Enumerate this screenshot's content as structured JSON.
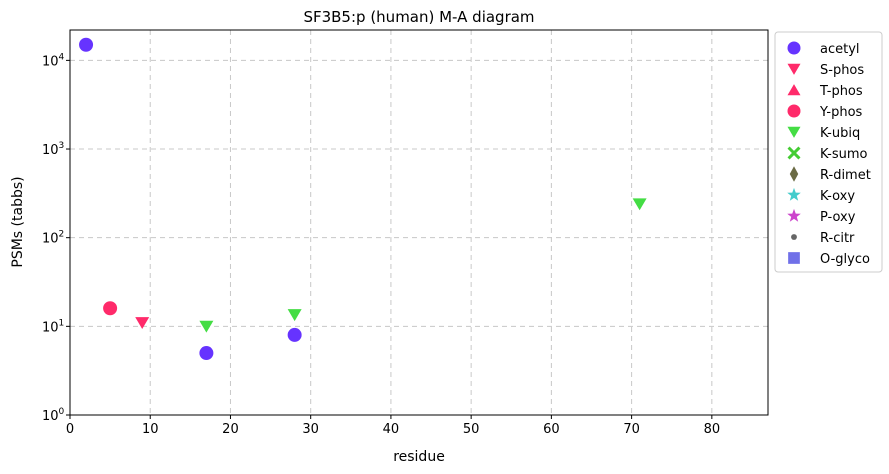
{
  "chart_data": {
    "type": "scatter",
    "title": "SF3B5:p (human) M-A diagram",
    "xlabel": "residue",
    "ylabel": "PSMs (tabbs)",
    "xlim": [
      0,
      87
    ],
    "ylim": [
      1,
      22000
    ],
    "yscale": "log",
    "grid": true,
    "legend_position": "outside-right",
    "x_ticks": [
      0,
      10,
      20,
      30,
      40,
      50,
      60,
      70,
      80
    ],
    "y_ticks": [
      {
        "value": 1,
        "base": "10",
        "exp": "0"
      },
      {
        "value": 10,
        "base": "10",
        "exp": "1"
      },
      {
        "value": 100,
        "base": "10",
        "exp": "2"
      },
      {
        "value": 1000,
        "base": "10",
        "exp": "3"
      },
      {
        "value": 10000,
        "base": "10",
        "exp": "4"
      }
    ],
    "series": [
      {
        "name": "acetyl",
        "marker": "circle",
        "color": "#6633ff",
        "points": [
          {
            "x": 2,
            "y": 15000
          },
          {
            "x": 17,
            "y": 5
          },
          {
            "x": 28,
            "y": 8
          }
        ]
      },
      {
        "name": "S-phos",
        "marker": "triangle-down",
        "color": "#ff2a6a",
        "points": [
          {
            "x": 9,
            "y": 11
          }
        ]
      },
      {
        "name": "T-phos",
        "marker": "triangle-up",
        "color": "#ff2a6a",
        "points": []
      },
      {
        "name": "Y-phos",
        "marker": "circle",
        "color": "#ff2a6a",
        "points": [
          {
            "x": 5,
            "y": 16
          }
        ]
      },
      {
        "name": "K-ubiq",
        "marker": "triangle-down",
        "color": "#44dd44",
        "points": [
          {
            "x": 17,
            "y": 10
          },
          {
            "x": 28,
            "y": 13.5
          },
          {
            "x": 71,
            "y": 240
          }
        ]
      },
      {
        "name": "K-sumo",
        "marker": "x",
        "color": "#44cc33",
        "points": []
      },
      {
        "name": "R-dimet",
        "marker": "diamond",
        "color": "#6b6b45",
        "points": []
      },
      {
        "name": "K-oxy",
        "marker": "star",
        "color": "#44cccc",
        "points": []
      },
      {
        "name": "P-oxy",
        "marker": "star",
        "color": "#cc44cc",
        "points": []
      },
      {
        "name": "R-citr",
        "marker": "small-circle",
        "color": "#666666",
        "points": []
      },
      {
        "name": "O-glyco",
        "marker": "square",
        "color": "#7070e8",
        "points": []
      }
    ]
  }
}
